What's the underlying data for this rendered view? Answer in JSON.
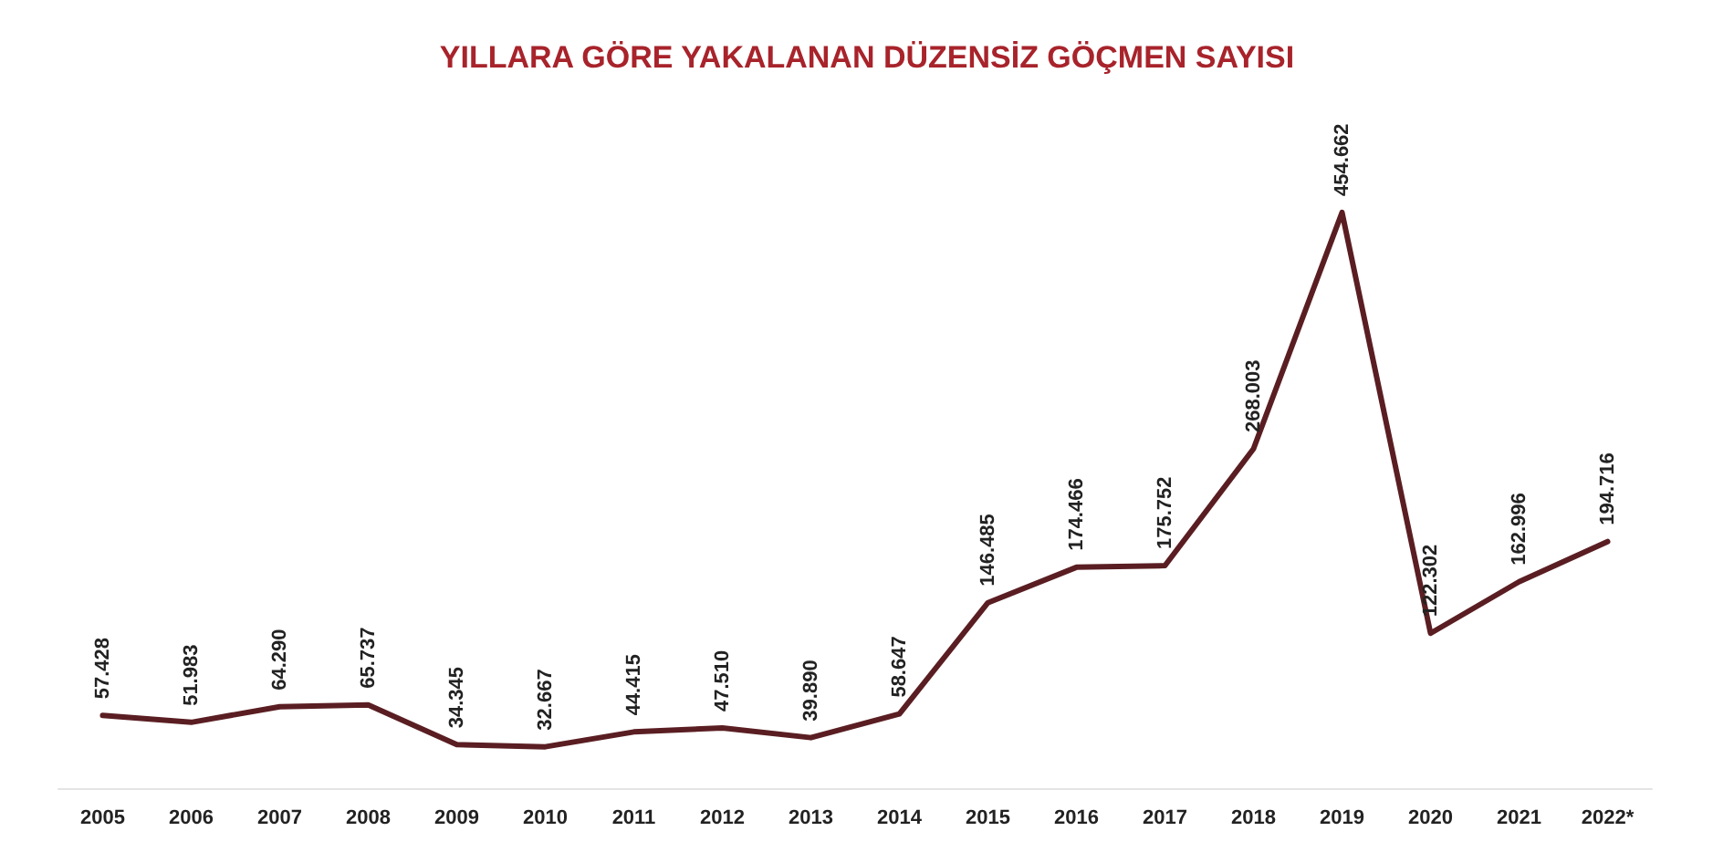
{
  "chart_data": {
    "type": "line",
    "title": "YILLARA GÖRE YAKALANAN DÜZENSİZ GÖÇMEN SAYISI",
    "categories": [
      "2005",
      "2006",
      "2007",
      "2008",
      "2009",
      "2010",
      "2011",
      "2012",
      "2013",
      "2014",
      "2015",
      "2016",
      "2017",
      "2018",
      "2019",
      "2020",
      "2021",
      "2022*"
    ],
    "series": [
      {
        "color": "#5a1e22",
        "values": [
          57428,
          51983,
          64290,
          65737,
          34345,
          32667,
          44415,
          47510,
          39890,
          58647,
          146485,
          174466,
          175752,
          268003,
          454662,
          122302,
          162996,
          194716
        ],
        "value_labels": [
          "57.428",
          "51.983",
          "64.290",
          "65.737",
          "34.345",
          "32.667",
          "44.415",
          "47.510",
          "39.890",
          "58.647",
          "146.485",
          "174.466",
          "175.752",
          "268.003",
          "454.662",
          "122.302",
          "162.996",
          "194.716"
        ]
      }
    ],
    "tick_labels": "x"
  }
}
